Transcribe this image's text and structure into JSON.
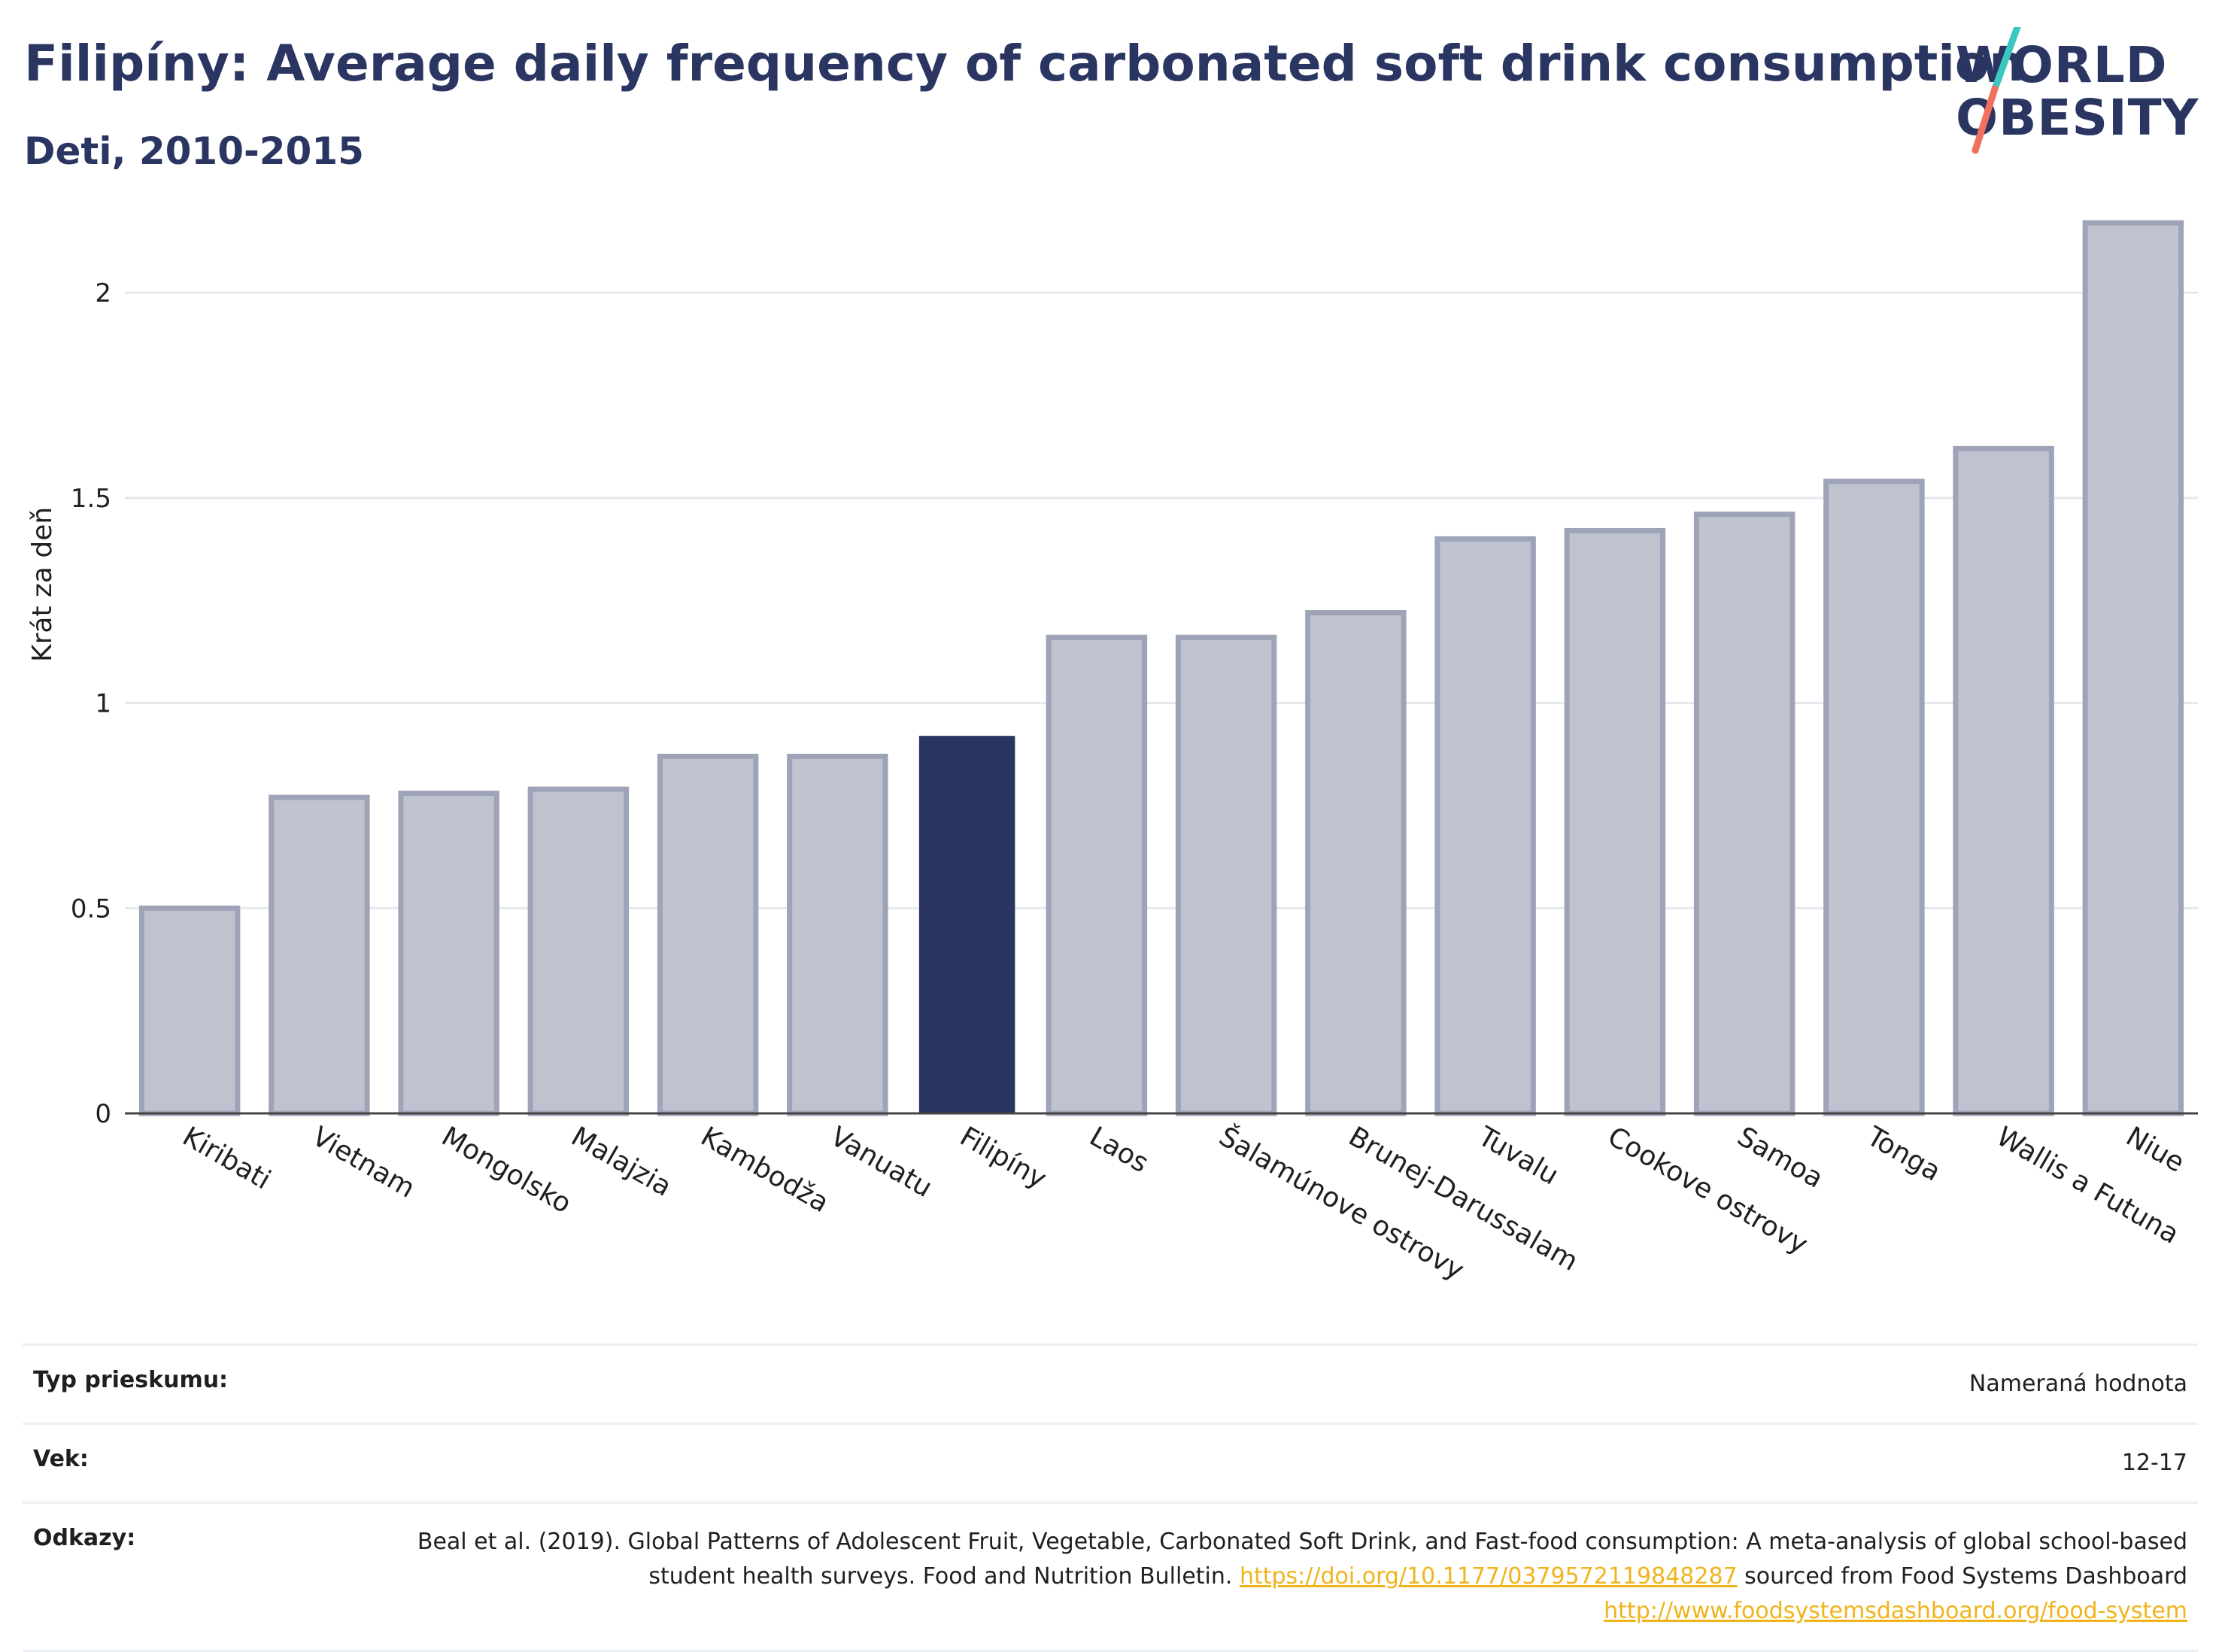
{
  "header": {
    "title": "Filipíny: Average daily frequency of carbonated soft drink consumption",
    "subtitle": "Deti, 2010-2015"
  },
  "logo": {
    "line1": "WORLD",
    "line2": "OBESITY",
    "colors": {
      "text": "#2a3561",
      "slash_top": "#3cc6c0",
      "slash_bottom": "#f2705e"
    }
  },
  "chart_data": {
    "type": "bar",
    "title": "Filipíny: Average daily frequency of carbonated soft drink consumption",
    "subtitle": "Deti, 2010-2015",
    "ylabel": "Krát za deň",
    "xlabel": "",
    "ylim": [
      0,
      2.2
    ],
    "yticks": [
      0,
      0.5,
      1,
      1.5,
      2
    ],
    "ytick_labels": [
      "0",
      "0.5",
      "1",
      "1.5",
      "2"
    ],
    "grid": true,
    "categories": [
      "Kiribati",
      "Vietnam",
      "Mongolsko",
      "Malajzia",
      "Kambodža",
      "Vanuatu",
      "Filipíny",
      "Laos",
      "Šalamúnove ostrovy",
      "Brunej-Darussalam",
      "Tuvalu",
      "Cookove ostrovy",
      "Samoa",
      "Tonga",
      "Wallis a Futuna",
      "Niue"
    ],
    "values": [
      0.5,
      0.77,
      0.78,
      0.79,
      0.87,
      0.87,
      0.92,
      1.16,
      1.16,
      1.22,
      1.4,
      1.42,
      1.46,
      1.54,
      1.62,
      2.17
    ],
    "highlight": "Filipíny",
    "colors": {
      "bar": "#bfc2cf",
      "bar_border": "#9ea3b8",
      "highlight": "#2a3561",
      "grid": "#e6e8ee",
      "axis": "#444444"
    }
  },
  "meta": {
    "rows": [
      {
        "key": "Typ prieskumu:",
        "value": "Nameraná hodnota"
      },
      {
        "key": "Vek:",
        "value": "12-17"
      }
    ],
    "references": {
      "key": "Odkazy:",
      "text1": "Beal et al. (2019). Global Patterns of Adolescent Fruit, Vegetable, Carbonated Soft Drink, and Fast-food consumption: A meta-analysis of global school-based student health surveys. Food and Nutrition Bulletin. ",
      "link1": "https://doi.org/10.1177/0379572119848287",
      "text2": " sourced from Food Systems Dashboard ",
      "link2": "http://www.foodsystemsdashboard.org/food-system"
    }
  }
}
